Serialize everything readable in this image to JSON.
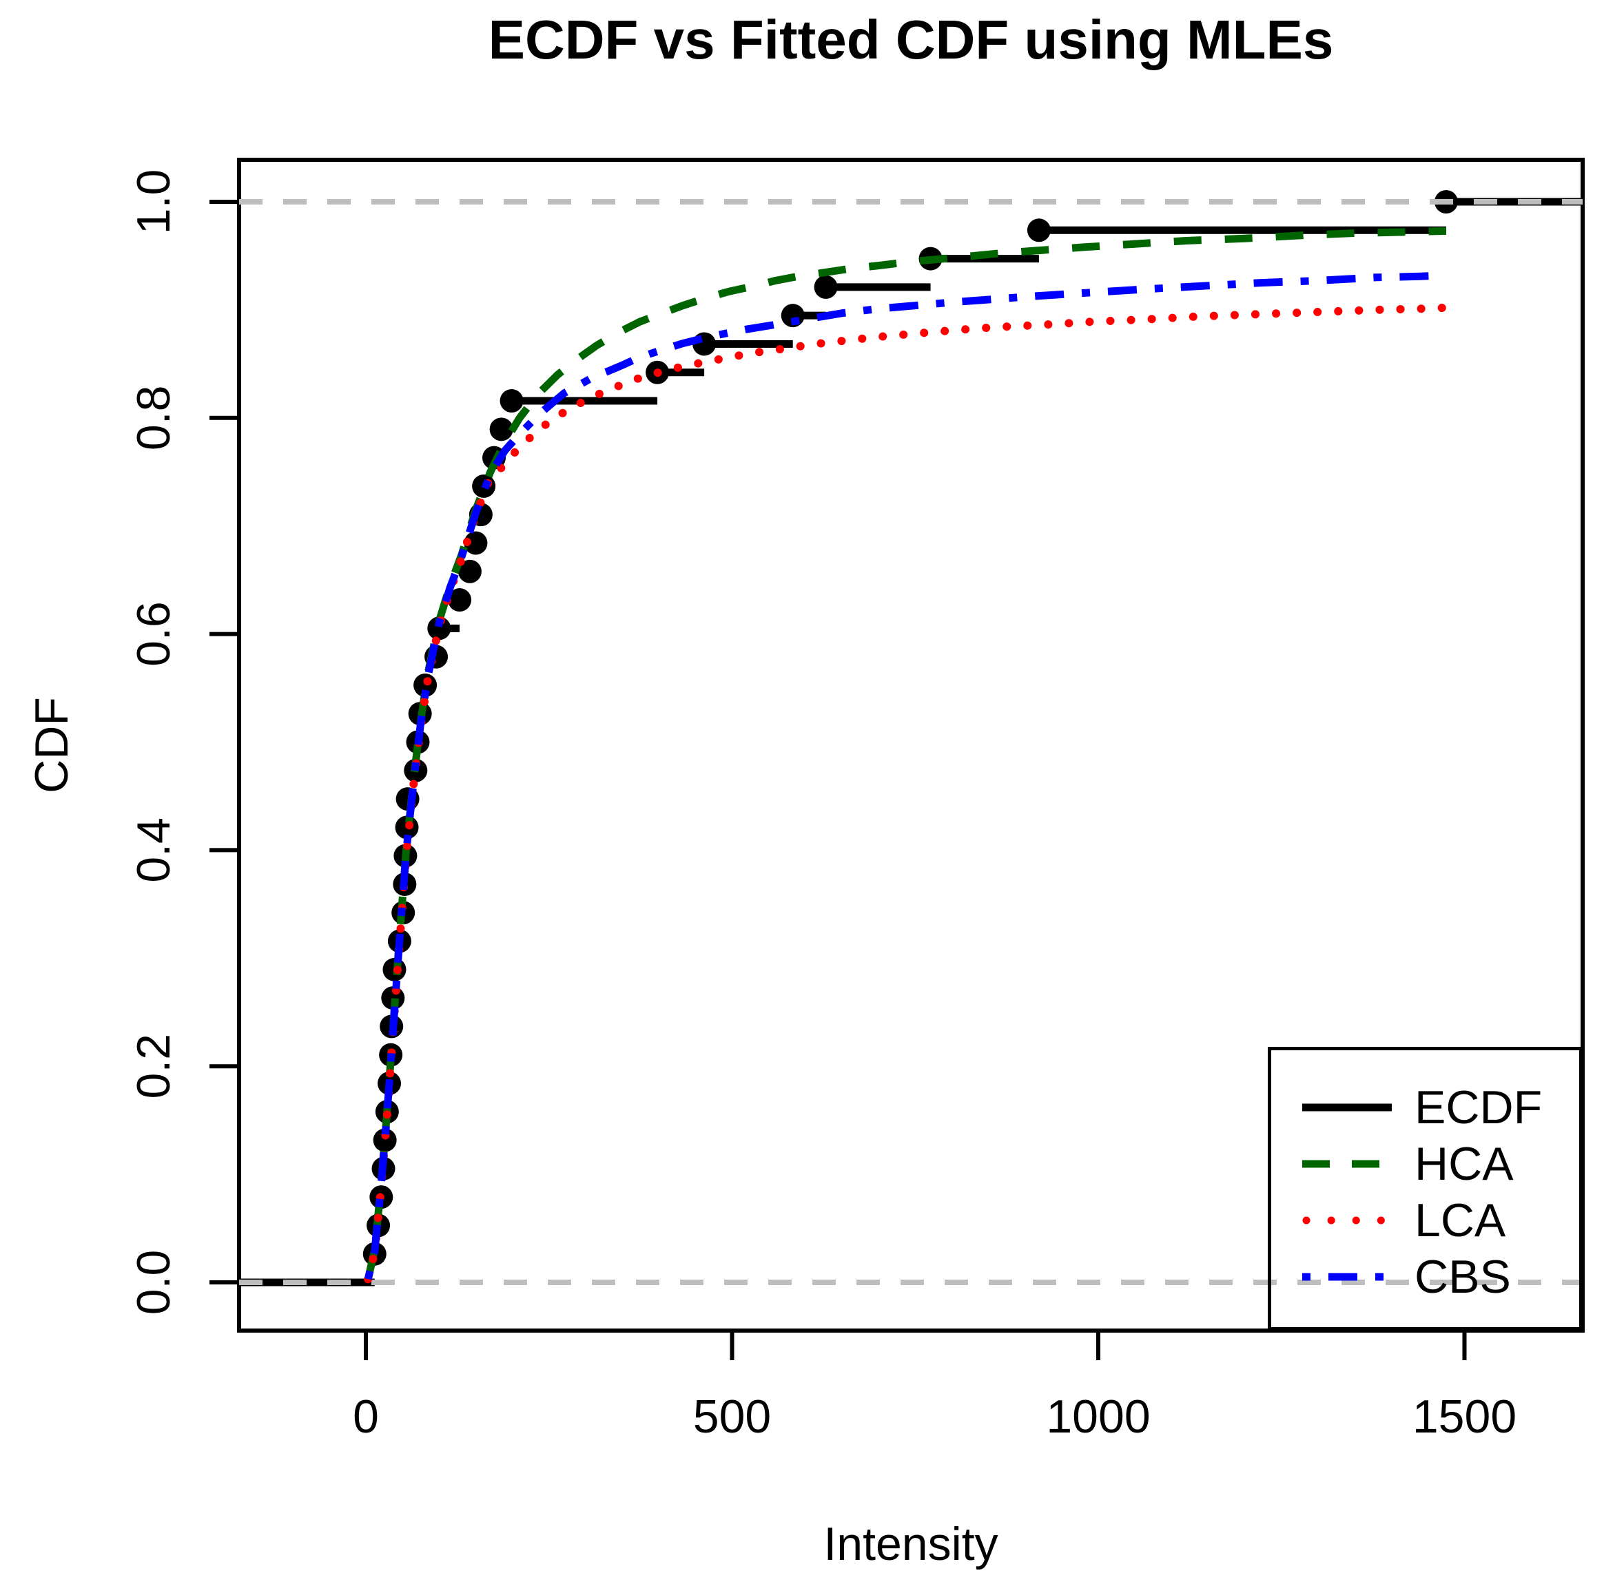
{
  "title": "ECDF vs Fitted CDF using MLEs",
  "x_axis": {
    "label": "Intensity",
    "tick_labels": [
      "0",
      "500",
      "1000",
      "1500"
    ],
    "tick_values": [
      0,
      500,
      1000,
      1500
    ]
  },
  "y_axis": {
    "label": "CDF",
    "tick_labels": [
      "0.0",
      "0.2",
      "0.4",
      "0.6",
      "0.8",
      "1.0"
    ],
    "tick_values": [
      0,
      0.2,
      0.4,
      0.6,
      0.8,
      1.0
    ]
  },
  "legend": {
    "items": [
      {
        "label": "ECDF",
        "color": "#000000",
        "line_style": "solid"
      },
      {
        "label": "HCA",
        "color": "#006400",
        "line_style": "dashed"
      },
      {
        "label": "LCA",
        "color": "#FF0000",
        "line_style": "dotted"
      },
      {
        "label": "CBS",
        "color": "#0000FF",
        "line_style": "dotdash"
      }
    ]
  },
  "colors": {
    "ecdf": "#000000",
    "hca": "#006400",
    "lca": "#FF0000",
    "cbs": "#0000FF",
    "reference": "#BEBEBE"
  },
  "chart_data": {
    "type": "line",
    "title": "ECDF vs Fitted CDF using MLEs",
    "xlabel": "Intensity",
    "ylabel": "CDF",
    "xlim": [
      -173,
      1661
    ],
    "ylim": [
      -0.045,
      1.039
    ],
    "x_ticks": [
      0,
      500,
      1000,
      1500
    ],
    "y_ticks": [
      0,
      0.2,
      0.4,
      0.6,
      0.8,
      1.0
    ],
    "grid": false,
    "legend_position": "bottomright",
    "reference_lines_y": [
      0,
      1
    ],
    "ecdf": {
      "name": "ECDF",
      "color": "#000000",
      "n": 38,
      "sample_values": [
        12,
        17,
        21,
        24,
        26,
        29,
        32,
        34,
        35,
        37,
        39,
        46,
        51,
        53,
        54,
        56,
        57,
        68,
        71,
        74,
        81,
        96,
        100,
        128,
        142,
        150,
        157,
        161,
        175,
        185,
        199,
        398,
        462,
        583,
        628,
        771,
        919,
        1475
      ],
      "step_levels_are": "k/38 for k=1..38"
    },
    "series": [
      {
        "name": "HCA",
        "color": "#006400",
        "line_style": "dashed",
        "x": [
          3,
          12,
          20,
          28,
          36,
          45,
          55,
          65,
          75,
          85,
          100,
          115,
          130,
          150,
          170,
          190,
          210,
          235,
          262,
          290,
          315,
          345,
          374,
          405,
          433,
          465,
          496,
          530,
          559,
          590,
          621,
          660,
          700,
          750,
          800,
          860,
          919,
          980,
          1050,
          1120,
          1200,
          1280,
          1350,
          1420,
          1475
        ],
        "y": [
          0.003,
          0.03,
          0.085,
          0.15,
          0.225,
          0.31,
          0.4,
          0.465,
          0.52,
          0.565,
          0.612,
          0.645,
          0.672,
          0.715,
          0.75,
          0.778,
          0.8,
          0.822,
          0.84,
          0.855,
          0.867,
          0.879,
          0.889,
          0.897,
          0.904,
          0.911,
          0.917,
          0.922,
          0.927,
          0.931,
          0.934,
          0.938,
          0.941,
          0.945,
          0.948,
          0.952,
          0.955,
          0.958,
          0.961,
          0.964,
          0.966,
          0.969,
          0.971,
          0.972,
          0.973
        ]
      },
      {
        "name": "LCA",
        "color": "#FF0000",
        "line_style": "dotted",
        "x": [
          3,
          12,
          20,
          28,
          36,
          45,
          55,
          65,
          75,
          85,
          100,
          115,
          130,
          150,
          170,
          187,
          207,
          231,
          255,
          285,
          311,
          343,
          374,
          405,
          435,
          465,
          496,
          527,
          559,
          590,
          622,
          660,
          700,
          750,
          800,
          860,
          920,
          990,
          1060,
          1140,
          1220,
          1300,
          1380,
          1440,
          1475
        ],
        "y": [
          0.003,
          0.028,
          0.082,
          0.146,
          0.22,
          0.305,
          0.395,
          0.46,
          0.515,
          0.56,
          0.607,
          0.64,
          0.668,
          0.71,
          0.745,
          0.755,
          0.771,
          0.786,
          0.799,
          0.811,
          0.82,
          0.829,
          0.837,
          0.843,
          0.848,
          0.852,
          0.856,
          0.86,
          0.863,
          0.866,
          0.869,
          0.872,
          0.875,
          0.878,
          0.881,
          0.884,
          0.886,
          0.889,
          0.891,
          0.894,
          0.896,
          0.898,
          0.9,
          0.901,
          0.902
        ]
      },
      {
        "name": "CBS",
        "color": "#0000FF",
        "line_style": "dotdash",
        "x": [
          3,
          12,
          20,
          28,
          36,
          45,
          55,
          65,
          75,
          85,
          100,
          115,
          130,
          150,
          170,
          190,
          210,
          236,
          255,
          271,
          290,
          311,
          330,
          351,
          370,
          391,
          433,
          475,
          520,
          565,
          607,
          651,
          700,
          750,
          800,
          860,
          920,
          990,
          1060,
          1140,
          1220,
          1300,
          1380,
          1440,
          1475
        ],
        "y": [
          0.003,
          0.029,
          0.084,
          0.148,
          0.222,
          0.308,
          0.398,
          0.462,
          0.518,
          0.562,
          0.61,
          0.643,
          0.67,
          0.712,
          0.748,
          0.77,
          0.785,
          0.803,
          0.814,
          0.823,
          0.83,
          0.838,
          0.843,
          0.849,
          0.855,
          0.86,
          0.869,
          0.876,
          0.882,
          0.887,
          0.892,
          0.897,
          0.901,
          0.904,
          0.907,
          0.91,
          0.913,
          0.916,
          0.919,
          0.922,
          0.925,
          0.927,
          0.93,
          0.931,
          0.932
        ]
      }
    ]
  }
}
